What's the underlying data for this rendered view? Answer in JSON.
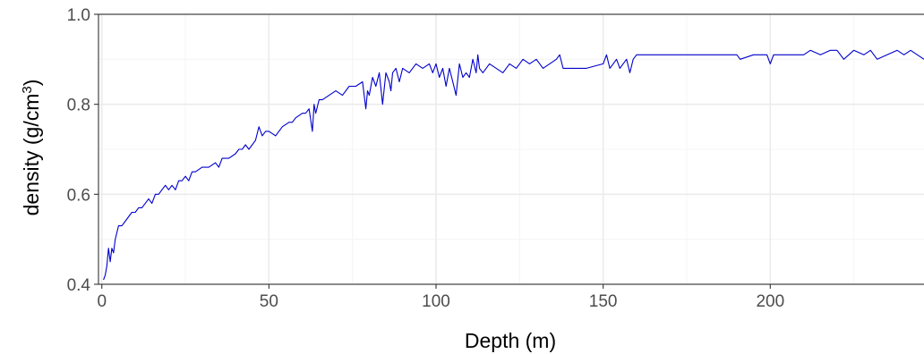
{
  "chart_data": {
    "type": "line",
    "title": "",
    "xlabel": "Depth (m)",
    "ylabel": "density (g/cm",
    "ylabel_superscript": "3",
    "ylabel_suffix": ")",
    "xlim": [
      -1,
      246
    ],
    "ylim": [
      0.4,
      1.0
    ],
    "xticks": [
      0,
      50,
      100,
      150,
      200
    ],
    "xtick_labels": [
      "0",
      "50",
      "100",
      "150",
      "200"
    ],
    "yticks": [
      0.4,
      0.6,
      0.8,
      1.0
    ],
    "ytick_labels": [
      "0.4",
      "0.6",
      "0.8",
      "1.0"
    ],
    "grid": true,
    "legend": "none",
    "colors": {
      "line": "#0000cc",
      "grid_major": "#ebebeb",
      "grid_minor": "#f5f5f5",
      "panel_border": "#333333"
    },
    "series": [
      {
        "x": [
          0.5,
          1,
          1.5,
          2,
          2.5,
          3,
          3.5,
          4,
          5,
          6,
          7,
          8,
          9,
          10,
          11,
          12,
          13,
          14,
          15,
          16,
          17,
          18,
          19,
          20,
          21,
          22,
          23,
          24,
          25,
          26,
          27,
          28,
          30,
          32,
          34,
          35,
          36,
          38,
          40,
          41,
          42,
          43,
          44,
          45,
          46,
          47,
          48,
          49,
          50,
          52,
          54,
          56,
          57,
          58,
          60,
          61,
          62,
          63,
          63.5,
          64,
          65,
          66,
          68,
          70,
          72,
          74,
          76,
          78,
          79,
          79.5,
          80,
          81,
          82,
          83,
          84,
          85,
          86,
          86.5,
          87,
          88,
          89,
          90,
          92,
          94,
          96,
          98,
          99,
          100,
          101,
          102,
          103,
          104,
          105,
          106,
          107,
          108,
          109,
          110,
          111,
          112,
          112.5,
          113,
          114,
          115,
          116,
          118,
          120,
          122,
          124,
          126,
          128,
          130,
          132,
          134,
          136,
          137,
          138,
          140,
          145,
          150,
          151,
          152,
          153,
          154,
          155,
          156,
          157,
          158,
          159,
          160,
          162,
          165,
          170,
          175,
          180,
          185,
          190,
          191,
          195,
          199,
          200,
          201,
          205,
          210,
          212,
          215,
          218,
          220,
          222,
          225,
          228,
          230,
          232,
          235,
          238,
          240,
          242,
          244,
          246
        ],
        "y": [
          0.41,
          0.42,
          0.44,
          0.48,
          0.45,
          0.48,
          0.47,
          0.5,
          0.53,
          0.53,
          0.54,
          0.55,
          0.56,
          0.56,
          0.57,
          0.57,
          0.58,
          0.59,
          0.58,
          0.6,
          0.6,
          0.61,
          0.62,
          0.61,
          0.62,
          0.61,
          0.63,
          0.63,
          0.64,
          0.63,
          0.65,
          0.65,
          0.66,
          0.66,
          0.67,
          0.66,
          0.68,
          0.68,
          0.69,
          0.7,
          0.7,
          0.71,
          0.7,
          0.71,
          0.72,
          0.75,
          0.73,
          0.74,
          0.74,
          0.73,
          0.75,
          0.76,
          0.76,
          0.77,
          0.78,
          0.78,
          0.79,
          0.74,
          0.8,
          0.78,
          0.81,
          0.81,
          0.82,
          0.83,
          0.82,
          0.84,
          0.84,
          0.85,
          0.79,
          0.83,
          0.82,
          0.86,
          0.84,
          0.87,
          0.8,
          0.87,
          0.85,
          0.83,
          0.87,
          0.88,
          0.85,
          0.88,
          0.87,
          0.89,
          0.88,
          0.89,
          0.87,
          0.89,
          0.86,
          0.88,
          0.84,
          0.88,
          0.85,
          0.82,
          0.89,
          0.86,
          0.87,
          0.86,
          0.9,
          0.87,
          0.91,
          0.88,
          0.87,
          0.88,
          0.89,
          0.88,
          0.87,
          0.89,
          0.88,
          0.9,
          0.89,
          0.9,
          0.88,
          0.89,
          0.9,
          0.91,
          0.88,
          0.88,
          0.88,
          0.89,
          0.91,
          0.88,
          0.89,
          0.9,
          0.88,
          0.89,
          0.9,
          0.87,
          0.9,
          0.91,
          0.91,
          0.91,
          0.91,
          0.91,
          0.91,
          0.91,
          0.91,
          0.9,
          0.91,
          0.91,
          0.89,
          0.91,
          0.91,
          0.91,
          0.92,
          0.91,
          0.92,
          0.92,
          0.9,
          0.92,
          0.91,
          0.92,
          0.9,
          0.91,
          0.92,
          0.91,
          0.92,
          0.91,
          0.9
        ]
      }
    ]
  }
}
